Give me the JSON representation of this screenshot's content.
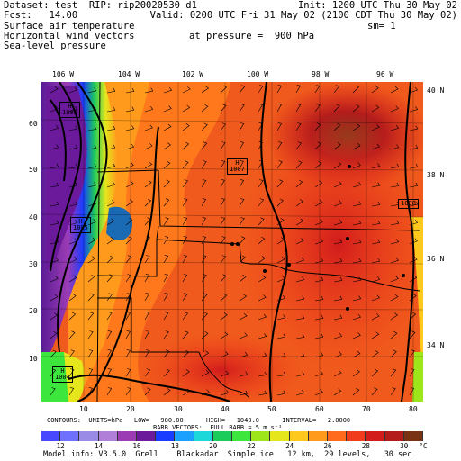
{
  "header": {
    "line1_left": "Dataset: test  RIP: rip20020530 d1",
    "line1_right": "Init: 1200 UTC Thu 30 May 02",
    "line2_left": "Fcst:   14.00",
    "line2_right": "Valid: 0200 UTC Fri 31 May 02 (2100 CDT Thu 30 May 02)",
    "line3_left": "Surface air temperature",
    "line3_right": "sm= 1",
    "line4_left": "Horizontal wind vectors",
    "line4_center": "at pressure =  900 hPa",
    "line5_left": "Sea-level pressure"
  },
  "longitude_labels": [
    "106 W",
    "104 W",
    "102 W",
    "100 W",
    "98 W",
    "96 W"
  ],
  "latitude_labels": [
    "40 N",
    "38 N",
    "36 N",
    "34 N"
  ],
  "x_axis_ticks": [
    "10",
    "20",
    "30",
    "40",
    "50",
    "60",
    "70",
    "80"
  ],
  "y_axis_ticks": [
    "60",
    "50",
    "40",
    "30",
    "20",
    "10"
  ],
  "pressure_labels": [
    {
      "type": "H",
      "value": "1008"
    },
    {
      "type": "H",
      "value": "1007"
    },
    {
      "type": "H",
      "value": "1005"
    },
    {
      "type": "H",
      "value": "1004"
    },
    {
      "type": "",
      "value": "1008"
    }
  ],
  "footer": {
    "contours": "CONTOURS:  UNITS=hPa   LOW=   980.00      HIGH=   1040.0      INTERVAL=   2.0000",
    "barbs": "BARB VECTORS:  FULL BARB = 5 m s⁻¹",
    "model_info": "Model info: V3.5.0  Grell    Blackadar  Simple ice   12 km,  29 levels,   30 sec"
  },
  "colorbar": {
    "labels": [
      "12",
      "14",
      "16",
      "18",
      "20",
      "22",
      "24",
      "26",
      "28",
      "30"
    ],
    "unit": "°C",
    "colors": [
      "#4848ff",
      "#7070ff",
      "#9a8ce6",
      "#b080d8",
      "#9c3cb4",
      "#6a1a9a",
      "#1a3cff",
      "#1ca0ff",
      "#1cd8d8",
      "#1ccc5a",
      "#3ce63c",
      "#9ee61c",
      "#e6e61c",
      "#ffc81c",
      "#ff9a1c",
      "#ff6a1c",
      "#f03c1c",
      "#d21c1c",
      "#b41c1c",
      "#7a3214"
    ]
  },
  "colors": {
    "dominant": "#f05a1c",
    "hot": "#c81c1c",
    "very_hot": "#8a3a1c",
    "cold": "#5a1c96"
  }
}
